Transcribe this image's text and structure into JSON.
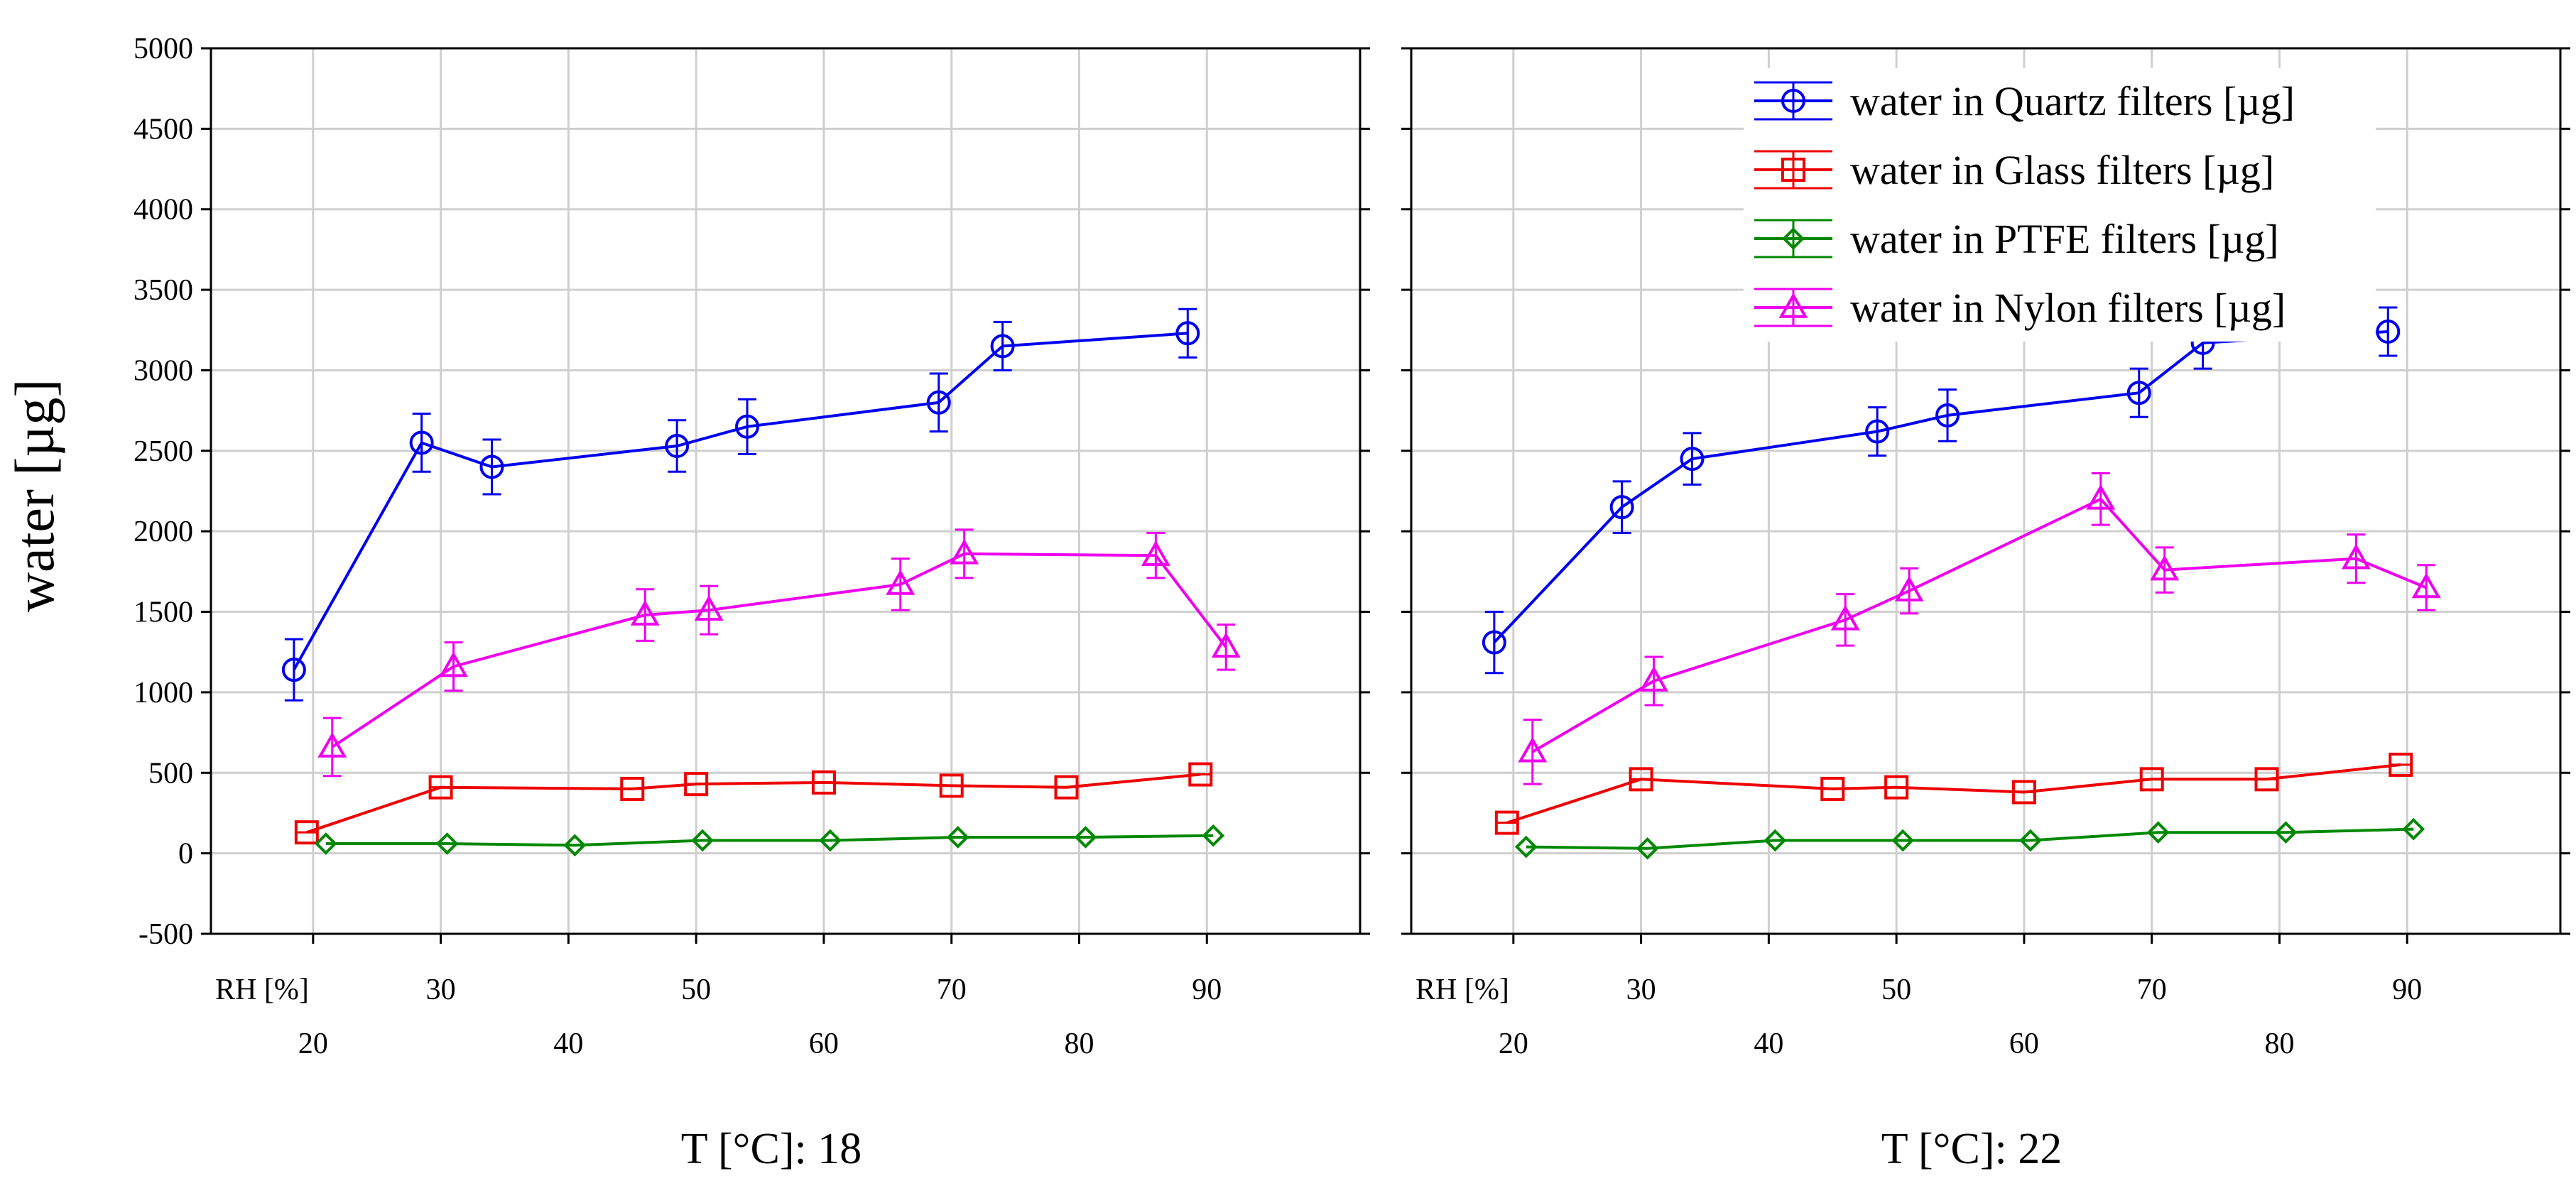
{
  "y_axis_label": "water [µg]",
  "legend": [
    {
      "label": "water in Quartz filters [µg]",
      "color": "#0000ee",
      "marker": "circle"
    },
    {
      "label": "water in Glass filters [µg]",
      "color": "#ee0000",
      "marker": "square"
    },
    {
      "label": "water in PTFE filters [µg]",
      "color": "#008800",
      "marker": "diamond"
    },
    {
      "label": "water in Nylon filters [µg]",
      "color": "#ee00ee",
      "marker": "triangle"
    }
  ],
  "chart_data": [
    {
      "type": "line",
      "panel_title": "T  [°C]: 18",
      "ylabel": "water [µg]",
      "ylim": [
        -500,
        5000
      ],
      "yticks": [
        -500,
        0,
        500,
        1000,
        1500,
        2000,
        2500,
        3000,
        3500,
        4000,
        4500,
        5000
      ],
      "xlim": [
        12,
        102
      ],
      "xticks_upper": {
        "label": "RH [%]",
        "values": [
          30,
          50,
          70,
          90
        ]
      },
      "xticks_lower": [
        20,
        40,
        60,
        80
      ],
      "grid": true,
      "series": [
        {
          "name": "water in Quartz filters [µg]",
          "x": [
            18.5,
            28.5,
            34,
            48.5,
            54,
            69,
            74,
            88.5
          ],
          "y": [
            1140,
            2550,
            2400,
            2530,
            2650,
            2800,
            3150,
            3230
          ],
          "err": [
            190,
            180,
            170,
            160,
            170,
            180,
            150,
            150
          ]
        },
        {
          "name": "water in Glass filters [µg]",
          "x": [
            19.5,
            30,
            45,
            50,
            60,
            70,
            79,
            89.5
          ],
          "y": [
            130,
            410,
            400,
            430,
            440,
            420,
            410,
            490
          ],
          "err": [
            0,
            0,
            0,
            0,
            0,
            0,
            0,
            0
          ]
        },
        {
          "name": "water in PTFE filters [µg]",
          "x": [
            21,
            30.5,
            40.5,
            50.5,
            60.5,
            70.5,
            80.5,
            90.5
          ],
          "y": [
            60,
            60,
            50,
            80,
            80,
            100,
            100,
            110
          ],
          "err": [
            0,
            0,
            0,
            0,
            0,
            0,
            0,
            0
          ]
        },
        {
          "name": "water in Nylon filters [µg]",
          "x": [
            21.5,
            31,
            46,
            51,
            66,
            71,
            86,
            91.5
          ],
          "y": [
            660,
            1160,
            1480,
            1510,
            1670,
            1860,
            1850,
            1280
          ],
          "err": [
            180,
            150,
            160,
            150,
            160,
            150,
            140,
            140
          ]
        }
      ]
    },
    {
      "type": "line",
      "panel_title": "T  [°C]: 22",
      "ylabel": "",
      "ylim": [
        -500,
        5000
      ],
      "xlim": [
        12,
        102
      ],
      "xticks_upper": {
        "label": "RH [%]",
        "values": [
          30,
          50,
          70,
          90
        ]
      },
      "xticks_lower": [
        20,
        40,
        60,
        80
      ],
      "grid": true,
      "legend_position": "top-right",
      "series": [
        {
          "name": "water in Quartz filters [µg]",
          "x": [
            18.5,
            28.5,
            34,
            48.5,
            54,
            69,
            74,
            88.5
          ],
          "y": [
            1310,
            2150,
            2450,
            2620,
            2720,
            2860,
            3170,
            3240
          ],
          "err": [
            190,
            160,
            160,
            150,
            160,
            150,
            160,
            150
          ]
        },
        {
          "name": "water in Glass filters [µg]",
          "x": [
            19.5,
            30,
            45,
            50,
            60,
            70,
            79,
            89.5
          ],
          "y": [
            190,
            460,
            400,
            410,
            380,
            460,
            460,
            550
          ],
          "err": [
            0,
            0,
            0,
            0,
            0,
            0,
            0,
            0
          ]
        },
        {
          "name": "water in PTFE filters [µg]",
          "x": [
            21,
            30.5,
            40.5,
            50.5,
            60.5,
            70.5,
            80.5,
            90.5
          ],
          "y": [
            40,
            30,
            80,
            80,
            80,
            130,
            130,
            150
          ],
          "err": [
            0,
            0,
            0,
            0,
            0,
            0,
            0,
            0
          ]
        },
        {
          "name": "water in Nylon filters [µg]",
          "x": [
            21.5,
            31,
            46,
            51,
            66,
            71,
            86,
            91.5
          ],
          "y": [
            630,
            1070,
            1450,
            1630,
            2200,
            1760,
            1830,
            1650
          ],
          "err": [
            200,
            150,
            160,
            140,
            160,
            140,
            150,
            140
          ]
        }
      ]
    }
  ]
}
